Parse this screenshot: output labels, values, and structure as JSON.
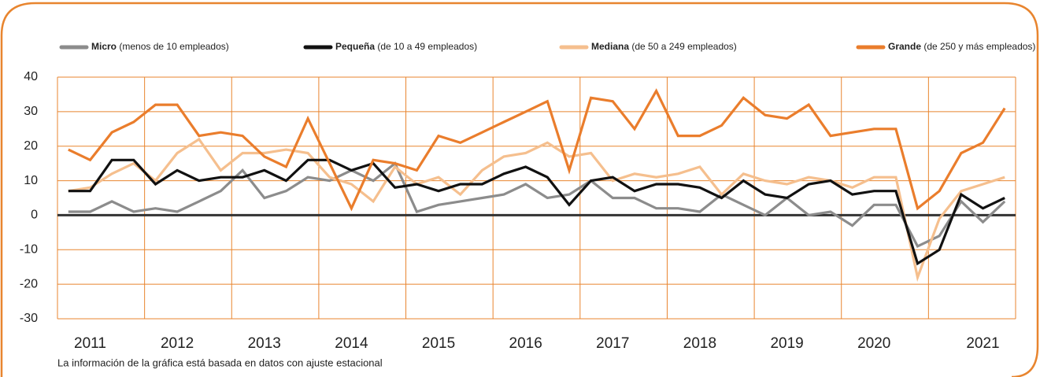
{
  "chart_data": {
    "type": "line",
    "categories": [
      null,
      "2011",
      null,
      null,
      null,
      "2012",
      null,
      null,
      null,
      "2013",
      null,
      null,
      null,
      "2014",
      null,
      null,
      null,
      "2015",
      null,
      null,
      null,
      "2016",
      null,
      null,
      null,
      "2017",
      null,
      null,
      null,
      "2018",
      null,
      null,
      null,
      "2019",
      null,
      null,
      null,
      "2020",
      null,
      null,
      null,
      null,
      "2021",
      null
    ],
    "series": [
      {
        "name": "Micro",
        "description": "(menos de 10 empleados)",
        "color": "#8c8c8c",
        "values": [
          1,
          1,
          4,
          1,
          2,
          1,
          4,
          7,
          13,
          5,
          7,
          11,
          10,
          13,
          10,
          15,
          1,
          3,
          4,
          5,
          6,
          9,
          5,
          6,
          10,
          5,
          5,
          2,
          2,
          1,
          6,
          3,
          0,
          5,
          0,
          1,
          -3,
          3,
          3,
          -9,
          -6,
          4,
          -2,
          4
        ]
      },
      {
        "name": "Pequeña",
        "description": "(de 10 a 49 empleados)",
        "color": "#111111",
        "values": [
          7,
          7,
          16,
          16,
          9,
          13,
          10,
          11,
          11,
          13,
          10,
          16,
          16,
          13,
          15,
          8,
          9,
          7,
          9,
          9,
          12,
          14,
          11,
          3,
          10,
          11,
          7,
          9,
          9,
          8,
          5,
          10,
          6,
          5,
          9,
          10,
          6,
          7,
          7,
          -14,
          -10,
          6,
          2,
          5
        ]
      },
      {
        "name": "Mediana",
        "description": "(de 50 a 249 empleados)",
        "color": "#f5bf8e",
        "values": [
          7,
          8,
          12,
          15,
          10,
          18,
          22,
          13,
          18,
          18,
          19,
          18,
          11,
          9,
          4,
          14,
          9,
          11,
          6,
          13,
          17,
          18,
          21,
          17,
          18,
          10,
          12,
          11,
          12,
          14,
          6,
          12,
          10,
          9,
          11,
          10,
          8,
          11,
          11,
          -18,
          -1,
          7,
          9,
          11
        ]
      },
      {
        "name": "Grande",
        "description": "(de 250 y más empleados)",
        "color": "#ea7d2c",
        "values": [
          19,
          16,
          24,
          27,
          32,
          32,
          23,
          24,
          23,
          17,
          14,
          28,
          15,
          2,
          16,
          15,
          13,
          23,
          21,
          24,
          27,
          30,
          33,
          13,
          34,
          33,
          25,
          36,
          23,
          23,
          26,
          34,
          29,
          28,
          32,
          23,
          24,
          25,
          25,
          2,
          7,
          18,
          21,
          31
        ]
      }
    ],
    "ylim": [
      -30,
      40
    ],
    "yticks": [
      -30,
      -20,
      -10,
      0,
      10,
      20,
      30,
      40
    ],
    "grid": true,
    "note": "La información de la gráfica está basada en datos con ajuste estacional"
  }
}
